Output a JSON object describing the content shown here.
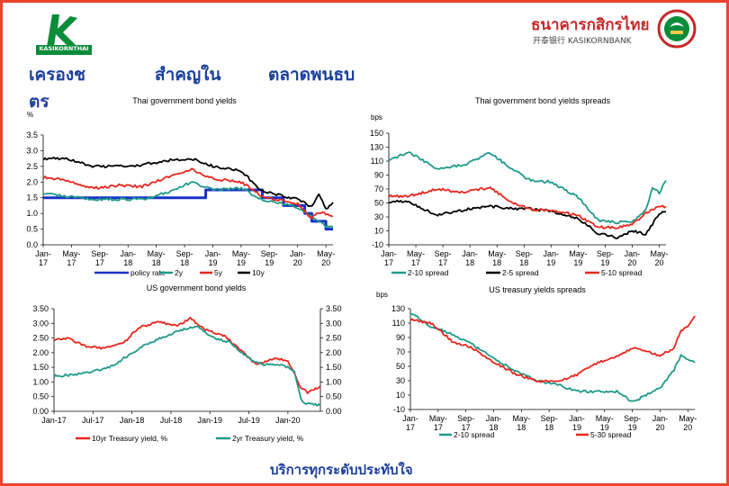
{
  "header": {
    "logo_text": "KASIKORNTHAI",
    "bank_name_th": "ธนาคารกสิกรไทย",
    "bank_name_en": "开泰银行 KASIKORNBANK",
    "title_parts": [
      "เครองช",
      "สำคญใน",
      "ตลาดพนธบ",
      "ตร"
    ]
  },
  "footer": {
    "text": "บริการทุกระดับประทับใจ"
  },
  "colors": {
    "green": "#1f9a8a",
    "red": "#e8261d",
    "black": "#000000",
    "blue": "#1632c8",
    "brand_green": "#0b8c3a",
    "brand_red": "#c62828",
    "heading": "#1b3f9c"
  },
  "chart_data": [
    {
      "type": "line",
      "title": "Thai government bond yields",
      "ylabel": "%",
      "ylim": [
        0,
        3.5
      ],
      "yticks": [
        "0.0",
        "0.5",
        "1.0",
        "1.5",
        "2.0",
        "2.5",
        "3.0",
        "3.5"
      ],
      "xlim": [
        "2017-01",
        "2020-06"
      ],
      "xticks": [
        {
          "x": "2017-01",
          "label": [
            "Jan-",
            "17"
          ]
        },
        {
          "x": "2017-05",
          "label": [
            "May-",
            "17"
          ]
        },
        {
          "x": "2017-09",
          "label": [
            "Sep-",
            "17"
          ]
        },
        {
          "x": "2018-01",
          "label": [
            "Jan-",
            "18"
          ]
        },
        {
          "x": "2018-05",
          "label": [
            "May-",
            "18"
          ]
        },
        {
          "x": "2018-09",
          "label": [
            "Sep-",
            "18"
          ]
        },
        {
          "x": "2019-01",
          "label": [
            "Jan-",
            "19"
          ]
        },
        {
          "x": "2019-05",
          "label": [
            "May-",
            "19"
          ]
        },
        {
          "x": "2019-09",
          "label": [
            "Sep-",
            "19"
          ]
        },
        {
          "x": "2020-01",
          "label": [
            "Jan-",
            "20"
          ]
        },
        {
          "x": "2020-05",
          "label": [
            "May-",
            "20"
          ]
        }
      ],
      "legend": "bottom",
      "series": [
        {
          "name": "policy rate",
          "color": "#1632c8",
          "step": true,
          "x": [
            "2017-01",
            "2018-12",
            "2018-12",
            "2019-08",
            "2019-08",
            "2019-11",
            "2019-11",
            "2020-02",
            "2020-02",
            "2020-03",
            "2020-03",
            "2020-05",
            "2020-05",
            "2020-06"
          ],
          "values": [
            1.5,
            1.5,
            1.75,
            1.75,
            1.5,
            1.5,
            1.25,
            1.25,
            1.0,
            1.0,
            0.75,
            0.75,
            0.5,
            0.5
          ]
        },
        {
          "name": "2y",
          "color": "#1f9a8a",
          "x": [
            "2017-01",
            "2017-04",
            "2017-08",
            "2017-12",
            "2018-03",
            "2018-07",
            "2018-10",
            "2019-01",
            "2019-05",
            "2019-08",
            "2019-11",
            "2020-01",
            "2020-03",
            "2020-05",
            "2020-06"
          ],
          "values": [
            1.65,
            1.55,
            1.45,
            1.45,
            1.45,
            1.7,
            2.0,
            1.75,
            1.8,
            1.45,
            1.3,
            1.2,
            0.9,
            0.6,
            0.55
          ]
        },
        {
          "name": "5y",
          "color": "#e8261d",
          "x": [
            "2017-01",
            "2017-04",
            "2017-08",
            "2017-12",
            "2018-03",
            "2018-07",
            "2018-10",
            "2019-01",
            "2019-05",
            "2019-08",
            "2019-11",
            "2020-01",
            "2020-03",
            "2020-04",
            "2020-06"
          ],
          "values": [
            2.15,
            2.05,
            1.8,
            1.9,
            1.85,
            2.2,
            2.4,
            2.1,
            2.0,
            1.55,
            1.4,
            1.3,
            0.85,
            1.05,
            0.9
          ]
        },
        {
          "name": "10y",
          "color": "#000000",
          "x": [
            "2017-01",
            "2017-04",
            "2017-08",
            "2017-12",
            "2018-03",
            "2018-07",
            "2018-10",
            "2019-01",
            "2019-05",
            "2019-08",
            "2019-11",
            "2020-01",
            "2020-03",
            "2020-04",
            "2020-05",
            "2020-06"
          ],
          "values": [
            2.75,
            2.75,
            2.5,
            2.5,
            2.55,
            2.7,
            2.75,
            2.5,
            2.35,
            1.7,
            1.55,
            1.45,
            1.2,
            1.6,
            1.15,
            1.35
          ]
        }
      ]
    },
    {
      "type": "line",
      "title": "Thai government bond yields spreads",
      "ylabel": "bps",
      "ylim": [
        -10,
        150
      ],
      "yticks": [
        "-10",
        "10",
        "30",
        "50",
        "70",
        "90",
        "110",
        "130",
        "150"
      ],
      "xlim": [
        "2017-01",
        "2020-06"
      ],
      "xticks": [
        {
          "x": "2017-01",
          "label": [
            "Jan-",
            "17"
          ]
        },
        {
          "x": "2017-05",
          "label": [
            "May-",
            "17"
          ]
        },
        {
          "x": "2017-09",
          "label": [
            "Sep-",
            "17"
          ]
        },
        {
          "x": "2018-01",
          "label": [
            "Jan-",
            "18"
          ]
        },
        {
          "x": "2018-05",
          "label": [
            "May-",
            "18"
          ]
        },
        {
          "x": "2018-09",
          "label": [
            "Sep-",
            "18"
          ]
        },
        {
          "x": "2019-01",
          "label": [
            "Jan-",
            "19"
          ]
        },
        {
          "x": "2019-05",
          "label": [
            "May-",
            "19"
          ]
        },
        {
          "x": "2019-09",
          "label": [
            "Sep-",
            "19"
          ]
        },
        {
          "x": "2020-01",
          "label": [
            "Jan-",
            "20"
          ]
        },
        {
          "x": "2020-05",
          "label": [
            "May-",
            "20"
          ]
        }
      ],
      "legend": "bottom",
      "series": [
        {
          "name": "2-10 spread",
          "color": "#1f9a8a",
          "x": [
            "2017-01",
            "2017-04",
            "2017-08",
            "2017-12",
            "2018-04",
            "2018-07",
            "2018-10",
            "2019-01",
            "2019-05",
            "2019-08",
            "2019-11",
            "2020-01",
            "2020-03",
            "2020-04",
            "2020-05",
            "2020-06"
          ],
          "values": [
            112,
            122,
            100,
            104,
            122,
            100,
            82,
            80,
            58,
            25,
            22,
            22,
            40,
            72,
            65,
            82
          ]
        },
        {
          "name": "2-5 spread",
          "color": "#000000",
          "x": [
            "2017-01",
            "2017-04",
            "2017-08",
            "2017-12",
            "2018-04",
            "2018-07",
            "2018-10",
            "2019-01",
            "2019-05",
            "2019-08",
            "2019-11",
            "2020-01",
            "2020-03",
            "2020-05",
            "2020-06"
          ],
          "values": [
            52,
            52,
            32,
            40,
            45,
            42,
            42,
            38,
            28,
            6,
            0,
            10,
            5,
            35,
            38
          ]
        },
        {
          "name": "5-10 spread",
          "color": "#e8261d",
          "x": [
            "2017-01",
            "2017-04",
            "2017-08",
            "2017-12",
            "2018-04",
            "2018-07",
            "2018-10",
            "2019-01",
            "2019-05",
            "2019-08",
            "2019-11",
            "2020-01",
            "2020-03",
            "2020-05",
            "2020-06"
          ],
          "values": [
            60,
            60,
            70,
            65,
            72,
            52,
            40,
            40,
            32,
            15,
            15,
            20,
            35,
            45,
            45
          ]
        }
      ]
    },
    {
      "type": "line",
      "title": "US government bond yields",
      "ylim": [
        0,
        3.5
      ],
      "yticks": [
        "0.00",
        "0.50",
        "1.00",
        "1.50",
        "2.00",
        "2.50",
        "3.00",
        "3.50"
      ],
      "xlim": [
        "2017-01",
        "2020-06"
      ],
      "xticks": [
        {
          "x": "2017-01",
          "label": [
            "Jan-17"
          ]
        },
        {
          "x": "2017-07",
          "label": [
            "Jul-17"
          ]
        },
        {
          "x": "2018-01",
          "label": [
            "Jan-18"
          ]
        },
        {
          "x": "2018-07",
          "label": [
            "Jul-18"
          ]
        },
        {
          "x": "2019-01",
          "label": [
            "Jan-19"
          ]
        },
        {
          "x": "2019-07",
          "label": [
            "Jul-19"
          ]
        },
        {
          "x": "2020-01",
          "label": [
            "Jan-20"
          ]
        }
      ],
      "legend": "bottom",
      "series": [
        {
          "name": "10yr Treasury yield, %",
          "color": "#e8261d",
          "x": [
            "2017-01",
            "2017-03",
            "2017-06",
            "2017-09",
            "2017-12",
            "2018-02",
            "2018-05",
            "2018-08",
            "2018-10",
            "2018-12",
            "2019-03",
            "2019-06",
            "2019-08",
            "2019-11",
            "2020-01",
            "2020-03",
            "2020-04",
            "2020-06"
          ],
          "values": [
            2.45,
            2.5,
            2.2,
            2.15,
            2.4,
            2.85,
            3.05,
            2.9,
            3.2,
            2.8,
            2.6,
            2.05,
            1.6,
            1.8,
            1.75,
            0.8,
            0.65,
            0.85
          ]
        },
        {
          "name": "2yr Treasury yield, %",
          "color": "#1f9a8a",
          "x": [
            "2017-01",
            "2017-04",
            "2017-07",
            "2017-10",
            "2017-12",
            "2018-03",
            "2018-06",
            "2018-09",
            "2018-11",
            "2019-01",
            "2019-04",
            "2019-07",
            "2019-09",
            "2019-12",
            "2020-02",
            "2020-03",
            "2020-04",
            "2020-06"
          ],
          "values": [
            1.2,
            1.25,
            1.35,
            1.55,
            1.85,
            2.25,
            2.55,
            2.8,
            2.9,
            2.55,
            2.35,
            1.8,
            1.6,
            1.6,
            1.4,
            0.4,
            0.25,
            0.2
          ]
        }
      ]
    },
    {
      "type": "line",
      "title": "US treasury yields spreads",
      "ylabel": "bps",
      "ylim": [
        -10,
        130
      ],
      "yticks": [
        "-10",
        "10",
        "30",
        "50",
        "70",
        "90",
        "110",
        "130"
      ],
      "xlim": [
        "2017-01",
        "2020-06"
      ],
      "xticks": [
        {
          "x": "2017-01",
          "label": [
            "Jan-",
            "17"
          ]
        },
        {
          "x": "2017-05",
          "label": [
            "May-",
            "17"
          ]
        },
        {
          "x": "2017-09",
          "label": [
            "Sep-",
            "17"
          ]
        },
        {
          "x": "2018-01",
          "label": [
            "Jan-",
            "18"
          ]
        },
        {
          "x": "2018-05",
          "label": [
            "May-",
            "18"
          ]
        },
        {
          "x": "2018-09",
          "label": [
            "Sep-",
            "18"
          ]
        },
        {
          "x": "2019-01",
          "label": [
            "Jan-",
            "19"
          ]
        },
        {
          "x": "2019-05",
          "label": [
            "May-",
            "19"
          ]
        },
        {
          "x": "2019-09",
          "label": [
            "Sep-",
            "19"
          ]
        },
        {
          "x": "2020-01",
          "label": [
            "Jan-",
            "20"
          ]
        },
        {
          "x": "2020-05",
          "label": [
            "May-",
            "20"
          ]
        }
      ],
      "legend": "bottom",
      "series": [
        {
          "name": "2-10 spread",
          "color": "#1f9a8a",
          "x": [
            "2017-01",
            "2017-04",
            "2017-07",
            "2017-10",
            "2018-01",
            "2018-04",
            "2018-07",
            "2018-10",
            "2019-01",
            "2019-04",
            "2019-07",
            "2019-09",
            "2019-11",
            "2020-01",
            "2020-03",
            "2020-04",
            "2020-06"
          ],
          "values": [
            125,
            105,
            95,
            80,
            60,
            45,
            30,
            25,
            15,
            15,
            15,
            0,
            10,
            20,
            45,
            65,
            55
          ]
        },
        {
          "name": "5-30 spread",
          "color": "#e8261d",
          "x": [
            "2017-01",
            "2017-04",
            "2017-07",
            "2017-10",
            "2018-01",
            "2018-04",
            "2018-07",
            "2018-10",
            "2019-01",
            "2019-04",
            "2019-07",
            "2019-09",
            "2019-11",
            "2020-01",
            "2020-03",
            "2020-04",
            "2020-05",
            "2020-06"
          ],
          "values": [
            115,
            110,
            85,
            75,
            55,
            40,
            30,
            28,
            38,
            55,
            65,
            75,
            70,
            65,
            75,
            100,
            105,
            120
          ]
        }
      ]
    }
  ]
}
